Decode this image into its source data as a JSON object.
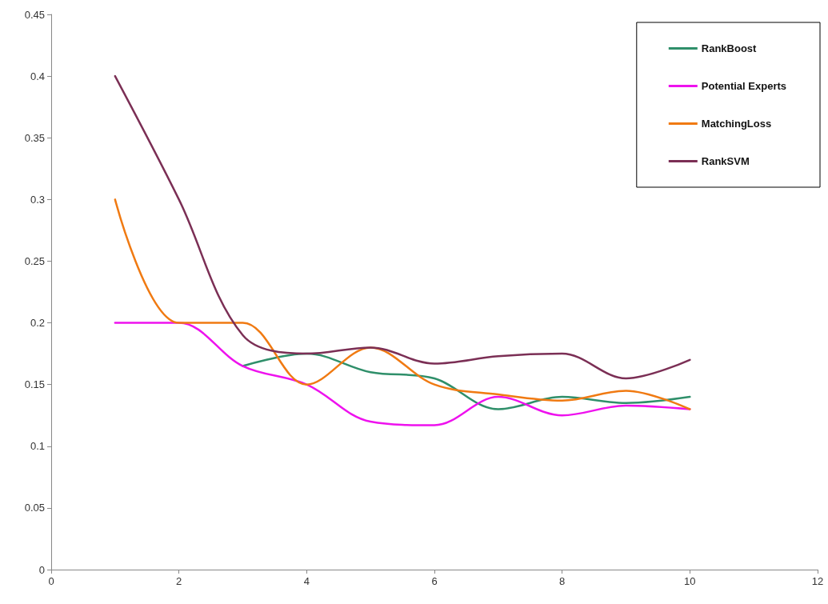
{
  "chart_data": {
    "type": "line",
    "x": [
      1,
      2,
      3,
      4,
      5,
      6,
      7,
      8,
      9,
      10
    ],
    "series": [
      {
        "name": "RankBoost",
        "color": "#2f8f6a",
        "values": [
          null,
          null,
          0.165,
          0.175,
          0.16,
          0.155,
          0.13,
          0.14,
          0.135,
          0.14
        ]
      },
      {
        "name": "Potential Experts",
        "color": "#ee12ee",
        "values": [
          0.2,
          0.2,
          0.165,
          0.15,
          0.12,
          0.117,
          0.14,
          0.125,
          0.133,
          0.13
        ]
      },
      {
        "name": "MatchingLoss",
        "color": "#f07a12",
        "values": [
          0.3,
          0.2,
          0.2,
          0.15,
          0.18,
          0.15,
          0.142,
          0.137,
          0.145,
          0.13
        ]
      },
      {
        "name": "RankSVM",
        "color": "#7b2f55",
        "values": [
          0.4,
          0.3,
          0.19,
          0.175,
          0.18,
          0.167,
          0.173,
          0.175,
          0.155,
          0.17
        ]
      }
    ],
    "xlim": [
      0,
      12
    ],
    "xticks": [
      0,
      2,
      4,
      6,
      8,
      10,
      12
    ],
    "ylim": [
      0,
      0.45
    ],
    "yticks": [
      0,
      0.05,
      0.1,
      0.15,
      0.2,
      0.25,
      0.3,
      0.35,
      0.4,
      0.45
    ],
    "grid": false,
    "legend": "top right",
    "marker": "none",
    "line_style": "solid"
  }
}
